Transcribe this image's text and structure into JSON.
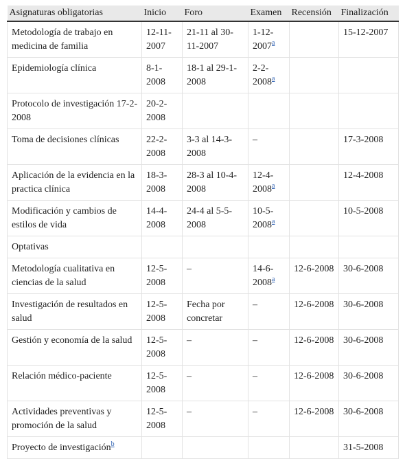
{
  "table": {
    "header": [
      "Asignaturas obligatorias",
      "Inicio",
      "Foro",
      "Examen",
      "Recensión",
      "Finalización"
    ],
    "rows": [
      [
        "Metodología de trabajo en medicina de familia",
        "12-11-2007",
        "21-11 al 30-11-2007",
        {
          "text": "1-12-2007",
          "note": "a"
        },
        null,
        "15-12-2007"
      ],
      [
        "Epidemiología clínica",
        "8-1-2008",
        "18-1 al 29-1-2008",
        {
          "text": "2-2-2008",
          "note": "a"
        },
        null,
        null
      ],
      [
        "Protocolo de investigación 17-2-2008",
        "20-2-2008",
        null,
        null,
        null,
        null
      ],
      [
        "Toma de decisiones clínicas",
        "22-2-2008",
        "3-3 al 14-3-2008",
        "–",
        null,
        "17-3-2008"
      ],
      [
        "Aplicación de la evidencia en la practica clínica",
        "18-3-2008",
        "28-3 al 10-4-2008",
        {
          "text": "12-4-2008",
          "note": "a"
        },
        null,
        "12-4-2008"
      ],
      [
        "Modificación y cambios de estilos de vida",
        "14-4-2008",
        "24-4 al 5-5-2008",
        {
          "text": "10-5-2008",
          "note": "a"
        },
        null,
        "10-5-2008"
      ],
      [
        "Optativas",
        null,
        null,
        null,
        null,
        null
      ],
      [
        "Metodología cualitativa en ciencias de la salud",
        "12-5-2008",
        "–",
        {
          "text": "14-6-2008",
          "note": "a"
        },
        "12-6-2008",
        "30-6-2008"
      ],
      [
        "Investigación de resultados en salud",
        "12-5-2008",
        "Fecha por concretar",
        "–",
        "12-6-2008",
        "30-6-2008"
      ],
      [
        "Gestión y economía de la salud",
        "12-5-2008",
        "–",
        "–",
        "12-6-2008",
        "30-6-2008"
      ],
      [
        "Relación médico-paciente",
        "12-5-2008",
        "–",
        "–",
        "12-6-2008",
        "30-6-2008"
      ],
      [
        "Actividades preventivas y promoción de la salud",
        "12-5-2008",
        "–",
        "–",
        "12-6-2008",
        "30-6-2008"
      ],
      [
        {
          "text": "Proyecto de investigación",
          "note": "b"
        },
        null,
        null,
        null,
        null,
        "31-5-2008"
      ]
    ]
  }
}
